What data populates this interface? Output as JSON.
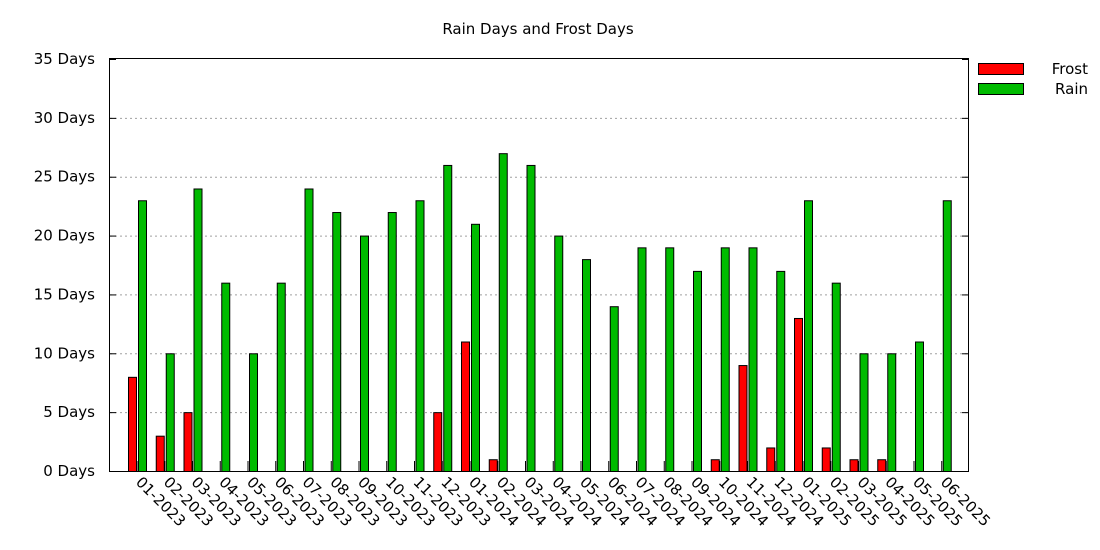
{
  "chart_data": {
    "type": "bar",
    "title": "Rain Days and Frost Days",
    "y_unit": "Days",
    "ylim": [
      0,
      35
    ],
    "y_ticks": [
      0,
      5,
      10,
      15,
      20,
      25,
      30,
      35
    ],
    "y_tick_labels": [
      "0 Days",
      "5 Days",
      "10 Days",
      "15 Days",
      "20 Days",
      "25 Days",
      "30 Days",
      "35 Days"
    ],
    "grid": true,
    "legend_position": "top-right",
    "categories": [
      "01-2023",
      "02-2023",
      "03-2023",
      "04-2023",
      "05-2023",
      "06-2023",
      "07-2023",
      "08-2023",
      "09-2023",
      "10-2023",
      "11-2023",
      "12-2023",
      "01-2024",
      "02-2024",
      "03-2024",
      "04-2024",
      "05-2024",
      "06-2024",
      "07-2024",
      "08-2024",
      "09-2024",
      "10-2024",
      "11-2024",
      "12-2024",
      "01-2025",
      "02-2025",
      "03-2025",
      "04-2025",
      "05-2025",
      "06-2025"
    ],
    "series": [
      {
        "name": "Frost",
        "color": "#ff0000",
        "values": [
          8,
          3,
          5,
          0,
          0,
          0,
          0,
          0,
          0,
          0,
          0,
          5,
          11,
          1,
          0,
          0,
          0,
          0,
          0,
          0,
          0,
          1,
          9,
          2,
          13,
          2,
          1,
          1,
          0,
          0
        ]
      },
      {
        "name": "Rain",
        "color": "#00bb00",
        "values": [
          23,
          10,
          24,
          16,
          10,
          16,
          24,
          22,
          20,
          22,
          23,
          26,
          21,
          27,
          26,
          20,
          18,
          14,
          19,
          19,
          17,
          19,
          19,
          17,
          23,
          16,
          10,
          10,
          11,
          23
        ]
      }
    ]
  }
}
